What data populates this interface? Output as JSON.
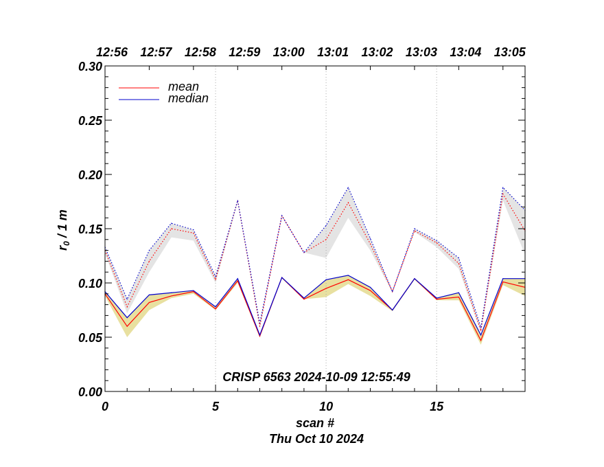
{
  "chart_data": {
    "type": "line",
    "xlabel": "scan #",
    "date_label": "Thu Oct 10 2024",
    "ylabel": "r",
    "ylabel_sub": "0",
    "ylabel_suffix": " / 1 m",
    "annotation": "CRISP 6563 2024-10-09 12:55:49",
    "xlim": [
      0,
      19
    ],
    "ylim": [
      0,
      0.3
    ],
    "x_ticks": [
      0,
      5,
      10,
      15
    ],
    "x_tick_labels": [
      "0",
      "5",
      "10",
      "15"
    ],
    "y_ticks": [
      0,
      0.05,
      0.1,
      0.15,
      0.2,
      0.25,
      0.3
    ],
    "y_tick_labels": [
      "0.00",
      "0.05",
      "0.10",
      "0.15",
      "0.20",
      "0.25",
      "0.30"
    ],
    "top_axis": {
      "label_x": [
        0,
        2,
        4,
        6,
        8,
        10,
        12,
        14,
        16,
        18
      ],
      "labels": [
        "12:56",
        "12:57",
        "12:58",
        "12:59",
        "13:00",
        "13:01",
        "13:02",
        "13:03",
        "13:04",
        "13:05"
      ]
    },
    "vertical_gridlines_x": [
      5,
      10,
      15
    ],
    "legend": [
      {
        "label": "mean",
        "color": "#ff0000"
      },
      {
        "label": "median",
        "color": "#0000cc"
      }
    ],
    "x": [
      0,
      1,
      2,
      3,
      4,
      5,
      6,
      7,
      8,
      9,
      10,
      11,
      12,
      13,
      14,
      15,
      16,
      17,
      18,
      19
    ],
    "series": [
      {
        "name": "mean (lower)",
        "style": "solid",
        "color": "#ff0000",
        "values": [
          0.09,
          0.06,
          0.082,
          0.088,
          0.092,
          0.076,
          0.102,
          0.051,
          0.105,
          0.085,
          0.095,
          0.103,
          0.093,
          0.075,
          0.104,
          0.085,
          0.087,
          0.047,
          0.101,
          0.096
        ]
      },
      {
        "name": "median (lower)",
        "style": "solid",
        "color": "#0000cc",
        "values": [
          0.092,
          0.068,
          0.089,
          0.091,
          0.093,
          0.078,
          0.104,
          0.052,
          0.105,
          0.086,
          0.103,
          0.107,
          0.096,
          0.075,
          0.104,
          0.086,
          0.091,
          0.052,
          0.104,
          0.104
        ]
      },
      {
        "name": "mean (upper)",
        "style": "dotted",
        "color": "#ff0000",
        "values": [
          0.13,
          0.078,
          0.12,
          0.15,
          0.146,
          0.103,
          0.176,
          0.06,
          0.162,
          0.128,
          0.14,
          0.174,
          0.136,
          0.092,
          0.148,
          0.137,
          0.118,
          0.056,
          0.182,
          0.148
        ]
      },
      {
        "name": "median (upper)",
        "style": "dotted",
        "color": "#0000cc",
        "values": [
          0.133,
          0.085,
          0.13,
          0.155,
          0.149,
          0.106,
          0.176,
          0.063,
          0.162,
          0.128,
          0.153,
          0.188,
          0.141,
          0.092,
          0.15,
          0.139,
          0.123,
          0.059,
          0.188,
          0.167
        ]
      }
    ],
    "bands": [
      {
        "name": "lower spread",
        "color": "#e8e0a0",
        "upper": [
          0.092,
          0.068,
          0.089,
          0.091,
          0.093,
          0.078,
          0.104,
          0.052,
          0.105,
          0.086,
          0.103,
          0.107,
          0.096,
          0.075,
          0.104,
          0.086,
          0.091,
          0.052,
          0.104,
          0.104
        ],
        "lower": [
          0.088,
          0.05,
          0.075,
          0.086,
          0.09,
          0.075,
          0.1,
          0.05,
          0.104,
          0.085,
          0.087,
          0.099,
          0.088,
          0.074,
          0.103,
          0.084,
          0.084,
          0.043,
          0.098,
          0.088
        ]
      },
      {
        "name": "upper spread",
        "color": "#e4e4e4",
        "upper": [
          0.133,
          0.085,
          0.13,
          0.155,
          0.149,
          0.106,
          0.176,
          0.063,
          0.162,
          0.128,
          0.153,
          0.188,
          0.141,
          0.092,
          0.15,
          0.139,
          0.123,
          0.059,
          0.188,
          0.167
        ],
        "lower": [
          0.127,
          0.072,
          0.11,
          0.142,
          0.139,
          0.1,
          0.174,
          0.058,
          0.161,
          0.128,
          0.123,
          0.16,
          0.13,
          0.091,
          0.147,
          0.133,
          0.113,
          0.054,
          0.176,
          0.126
        ]
      }
    ]
  }
}
